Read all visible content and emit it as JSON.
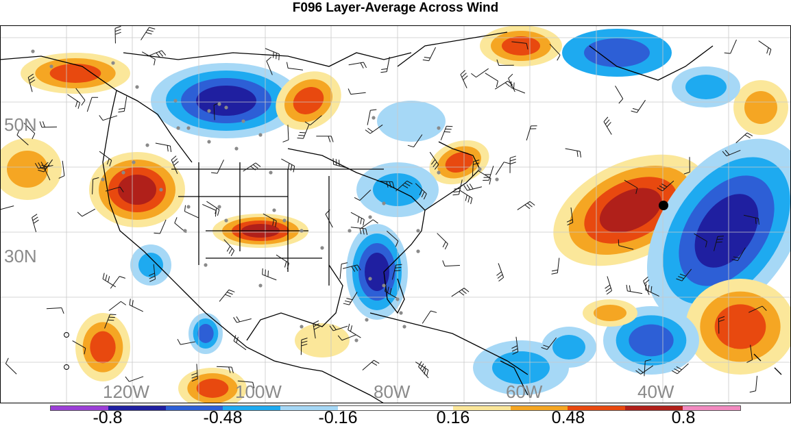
{
  "title": "F096 Layer-Average Across Wind",
  "lat_labels": [
    "50N",
    "30N"
  ],
  "lon_labels": [
    "120W",
    "100W",
    "80W",
    "60W",
    "40W"
  ],
  "colorbar": {
    "colors": [
      "#9b3fd6",
      "#1f1fa0",
      "#2d5fd6",
      "#1eaaf0",
      "#a6d8f6",
      "#ffffff",
      "#ffffff",
      "#fbe79a",
      "#f5a623",
      "#e8490f",
      "#b0201a",
      "#f28ac0"
    ],
    "labels": [
      "-0.8",
      "-0.48",
      "-0.16",
      "0.16",
      "0.48",
      "0.8"
    ]
  },
  "chart_data": {
    "type": "heatmap",
    "title": "F096 Layer-Average Across Wind",
    "colorbar_levels": [
      -0.8,
      -0.64,
      -0.48,
      -0.32,
      -0.16,
      0,
      0.16,
      0.32,
      0.48,
      0.64,
      0.8
    ],
    "lat_range": [
      15,
      65
    ],
    "lon_range": [
      -130,
      -30
    ]
  }
}
